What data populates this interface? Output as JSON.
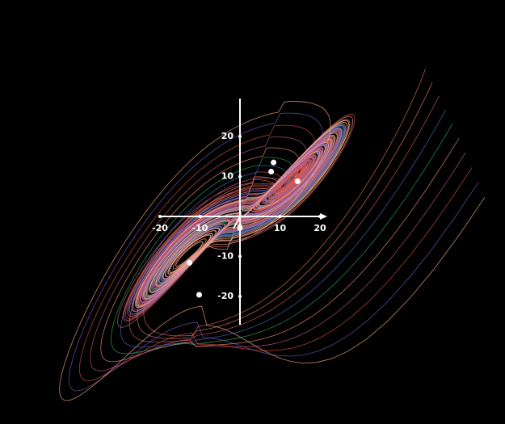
{
  "chart_data": {
    "type": "scatter",
    "x": [
      8.4,
      7.8,
      14.4,
      -12.6,
      -10.2
    ],
    "values": [
      13.5,
      11.2,
      8.8,
      -11.6,
      -19.6
    ],
    "color": "#ffffff",
    "xticks": [
      -20,
      -10,
      0,
      10,
      20
    ],
    "yticks": [
      -20,
      -10,
      10,
      20
    ]
  }
}
